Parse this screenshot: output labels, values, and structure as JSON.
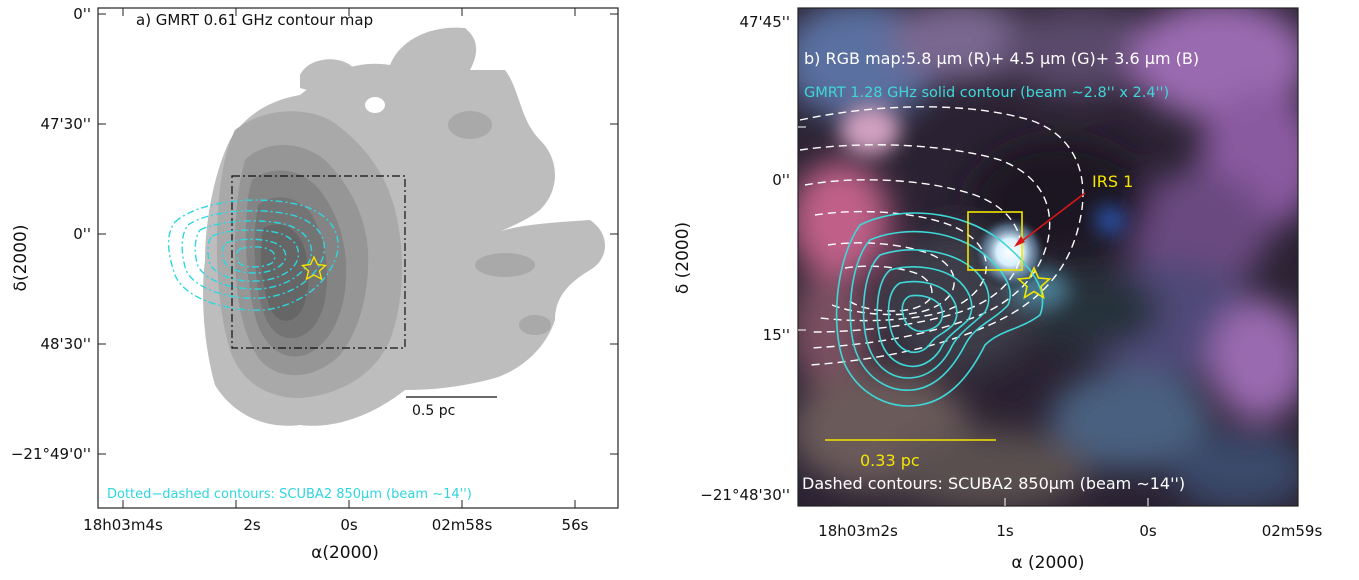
{
  "panel_a": {
    "title": "a) GMRT 0.61 GHz contour map",
    "xlabel": "α(2000)",
    "ylabel": "δ(2000)",
    "x_ticks": [
      "18h03m4s",
      "2s",
      "0s",
      "02m58s",
      "56s"
    ],
    "y_ticks": [
      "0''",
      "47'30''",
      "0''",
      "48'30''",
      "−21°49'0''"
    ],
    "scale_bar_label": "0.5 pc",
    "legend_text": "Dotted−dashed contours: SCUBA2 850μm (beam ∼14'')",
    "colors": {
      "contour_fill": "#8c8c8c",
      "scuba_contour": "#2fd6e0",
      "star": "#f2e600",
      "box": "#111111"
    }
  },
  "panel_b": {
    "title": "b) RGB map:5.8 μm (R)+ 4.5 μm (G)+ 3.6 μm (B)",
    "contour_label": "GMRT 1.28 GHz solid contour (beam ∼2.8'' x 2.4'')",
    "source_label": "IRS 1",
    "scale_bar_label": "0.33 pc",
    "legend_text": "Dashed contours: SCUBA2 850μm (beam ∼14'')",
    "xlabel": "α  (2000)",
    "ylabel": "δ  (2000)",
    "x_ticks": [
      "18h03m2s",
      "1s",
      "0s",
      "02m59s"
    ],
    "y_ticks": [
      "47'45''",
      "0''",
      "15''",
      "−21°48'30''"
    ],
    "colors": {
      "gmrt_contour": "#3fd8d8",
      "scuba_contour": "#ffffff",
      "annotation": "#f2e600",
      "arrow": "#d81818",
      "label": "#3fd8d8"
    }
  }
}
